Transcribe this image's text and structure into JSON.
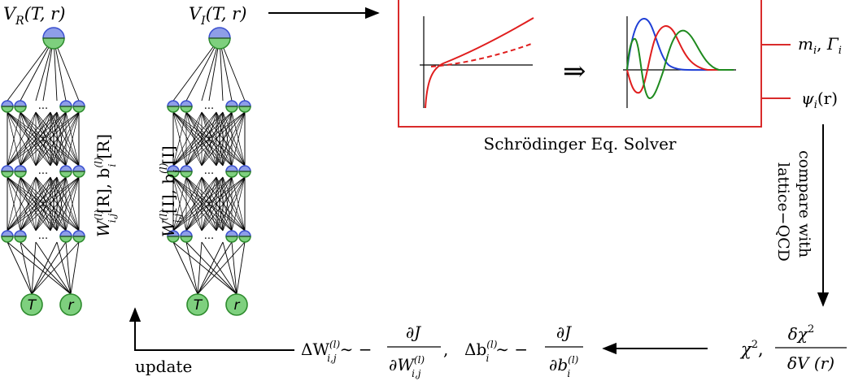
{
  "networks": {
    "real": {
      "output_label_main": "V",
      "output_label_sub": "R",
      "output_label_args": "(T, r)",
      "weights_label": "W",
      "weights_sup": "(l)",
      "weights_sub": "i,j",
      "weights_tag": "[R], b",
      "bias_sup": "(l)",
      "bias_sub": "i",
      "bias_tag": "[R]",
      "input_nodes": [
        "T",
        "r"
      ],
      "hidden_ellipsis": "..."
    },
    "imag": {
      "output_label_main": "V",
      "output_label_sub": "I",
      "output_label_args": "(T, r)",
      "weights_label": "W",
      "weights_sup": "(l)",
      "weights_sub": "i,j",
      "weights_tag": "[I], b",
      "bias_sup": "(l)",
      "bias_sub": "i",
      "bias_tag": "[I]",
      "input_nodes": [
        "T",
        "r"
      ],
      "hidden_ellipsis": "..."
    }
  },
  "solver": {
    "caption": "Schrödinger Eq. Solver",
    "implies_symbol": "⇒",
    "outputs": [
      {
        "main": "m",
        "sub": "i",
        "sep": ", ",
        "main2": "Γ",
        "sub2": "i"
      },
      {
        "main": "ψ",
        "sub": "i",
        "tail": "(r)"
      }
    ]
  },
  "compare": {
    "line1": "compare with",
    "line2": "lattice−QCD"
  },
  "chi": {
    "chi2": "χ",
    "sup": "2",
    "sep": ",",
    "frac_num": "δχ",
    "frac_num_sup": "2",
    "frac_den": "δV (r)"
  },
  "update_formula": {
    "dW_lhs": "ΔW",
    "dW_sup": "(l)",
    "dW_sub": "i,j",
    "sim": "∼ −",
    "dJ": "∂J",
    "dW_den": "∂W",
    "sep": ",",
    "db_lhs": "Δb",
    "db_sup": "(l)",
    "db_sub": "i",
    "db_den": "∂b"
  },
  "update_label": "update",
  "colors": {
    "node_top": "#8e9ee8",
    "node_bottom": "#7ed07e",
    "node_stroke_top": "#3a4fcf",
    "node_stroke_bottom": "#2e8b2e",
    "solver_border": "#d92b2b",
    "curve_blue": "#1f3fd6",
    "curve_red": "#e01e1e",
    "curve_green": "#1e8a1e"
  }
}
